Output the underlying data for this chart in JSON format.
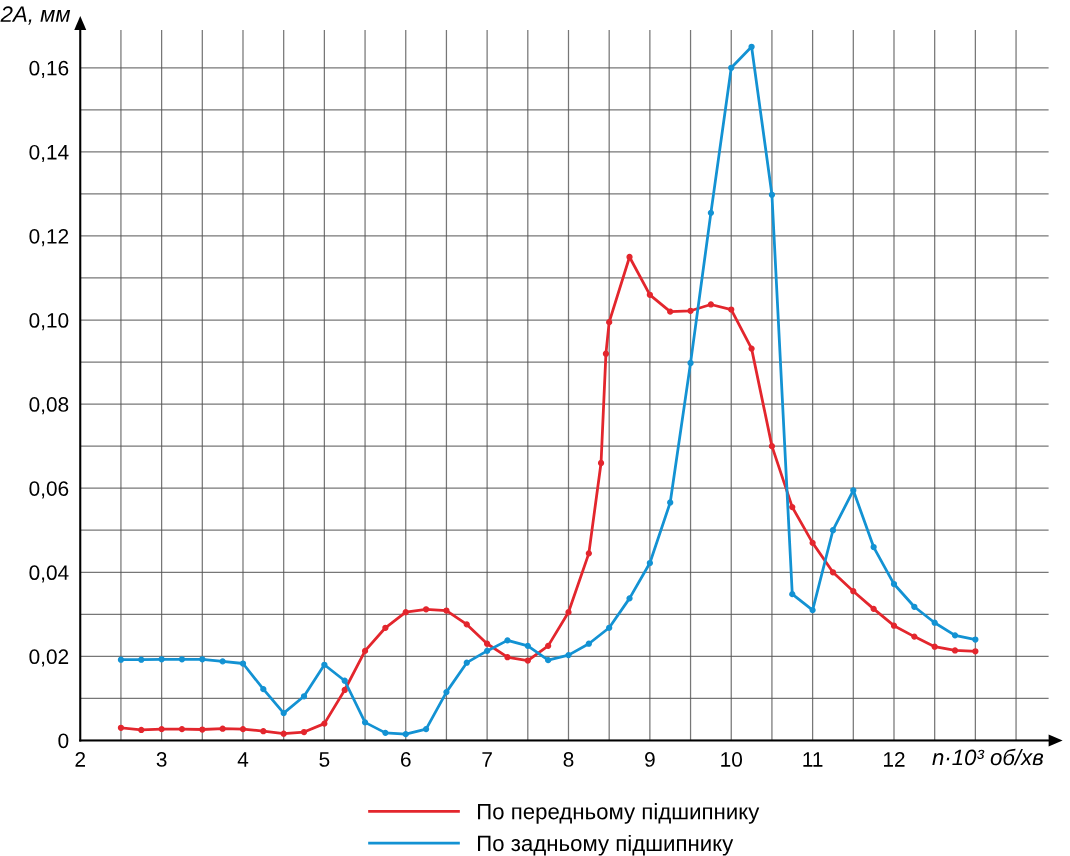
{
  "chart_data": {
    "type": "line",
    "xlabel": "n·10³ об/хв",
    "ylabel": "2A, мм",
    "xlim": [
      2,
      13.9
    ],
    "ylim": [
      0,
      0.169
    ],
    "xticks": [
      2,
      {
        "value": 2.5,
        "label": null
      },
      3,
      {
        "value": 3.5,
        "label": null
      },
      4,
      {
        "value": 4.5,
        "label": null
      },
      5,
      {
        "value": 5.5,
        "label": null
      },
      6,
      {
        "value": 6.5,
        "label": null
      },
      7,
      {
        "value": 7.5,
        "label": null
      },
      8,
      {
        "value": 8.5,
        "label": null
      },
      9,
      {
        "value": 9.5,
        "label": null
      },
      10,
      {
        "value": 10.5,
        "label": null
      },
      11,
      {
        "value": 11.5,
        "label": null
      },
      12,
      {
        "value": 12.5,
        "label": null
      },
      {
        "value": 13,
        "label": null
      },
      {
        "value": 13.5,
        "label": null
      }
    ],
    "yticks": [
      {
        "value": 0,
        "label": "0"
      },
      {
        "value": 0.01,
        "label": null
      },
      {
        "value": 0.02,
        "label": "0,02"
      },
      {
        "value": 0.03,
        "label": null
      },
      {
        "value": 0.04,
        "label": "0,04"
      },
      {
        "value": 0.05,
        "label": null
      },
      {
        "value": 0.06,
        "label": "0,06"
      },
      {
        "value": 0.07,
        "label": null
      },
      {
        "value": 0.08,
        "label": "0,08"
      },
      {
        "value": 0.09,
        "label": null
      },
      {
        "value": 0.1,
        "label": "0,10"
      },
      {
        "value": 0.11,
        "label": null
      },
      {
        "value": 0.12,
        "label": "0,12"
      },
      {
        "value": 0.13,
        "label": null
      },
      {
        "value": 0.14,
        "label": "0,14"
      },
      {
        "value": 0.15,
        "label": null
      },
      {
        "value": 0.16,
        "label": "0,16"
      }
    ],
    "grid": true,
    "legend": "bottom",
    "marker": "circle",
    "line_style": "solid",
    "series": [
      {
        "name": "По передньому підшипнику",
        "color": "#e3262d",
        "x": [
          2.5,
          2.75,
          3,
          3.25,
          3.5,
          3.75,
          4,
          4.25,
          4.5,
          4.75,
          5,
          5.25,
          5.5,
          5.75,
          6,
          6.25,
          6.5,
          6.75,
          7,
          7.25,
          7.5,
          7.75,
          8,
          8.25,
          8.4,
          8.46,
          8.5,
          8.75,
          9,
          9.25,
          9.5,
          9.75,
          10,
          10.25,
          10.5,
          10.75,
          11,
          11.25,
          11.5,
          11.75,
          12,
          12.25,
          12.5,
          12.75,
          13
        ],
        "values": [
          0.003,
          0.0025,
          0.0027,
          0.0027,
          0.0026,
          0.0028,
          0.0027,
          0.0022,
          0.0016,
          0.002,
          0.004,
          0.012,
          0.0213,
          0.0268,
          0.0305,
          0.0312,
          0.0309,
          0.0276,
          0.023,
          0.0198,
          0.019,
          0.0225,
          0.0305,
          0.0445,
          0.066,
          0.092,
          0.0995,
          0.115,
          0.106,
          0.102,
          0.1022,
          0.1037,
          0.1025,
          0.0932,
          0.07,
          0.0555,
          0.047,
          0.04,
          0.0355,
          0.0313,
          0.0273,
          0.0247,
          0.0223,
          0.0214,
          0.0212
        ]
      },
      {
        "name": "По задньому підшипнику",
        "color": "#1392d3",
        "x": [
          2.5,
          2.75,
          3,
          3.25,
          3.5,
          3.75,
          4,
          4.25,
          4.5,
          4.75,
          5,
          5.25,
          5.5,
          5.75,
          6,
          6.25,
          6.5,
          6.75,
          7,
          7.25,
          7.5,
          7.75,
          8,
          8.25,
          8.5,
          8.75,
          9,
          9.25,
          9.5,
          9.75,
          10,
          10.25,
          10.5,
          10.75,
          11,
          11.25,
          11.5,
          11.75,
          12,
          12.25,
          12.5,
          12.75,
          13
        ],
        "values": [
          0.0192,
          0.0192,
          0.0193,
          0.0193,
          0.0193,
          0.0188,
          0.0183,
          0.0122,
          0.0065,
          0.0105,
          0.018,
          0.0142,
          0.0043,
          0.0018,
          0.0015,
          0.0027,
          0.0115,
          0.0185,
          0.0213,
          0.0238,
          0.0225,
          0.0191,
          0.0203,
          0.023,
          0.0268,
          0.0338,
          0.0422,
          0.0566,
          0.0898,
          0.1255,
          0.16,
          0.165,
          0.1298,
          0.0348,
          0.031,
          0.05,
          0.0595,
          0.046,
          0.0372,
          0.0318,
          0.028,
          0.025,
          0.024
        ]
      }
    ]
  }
}
